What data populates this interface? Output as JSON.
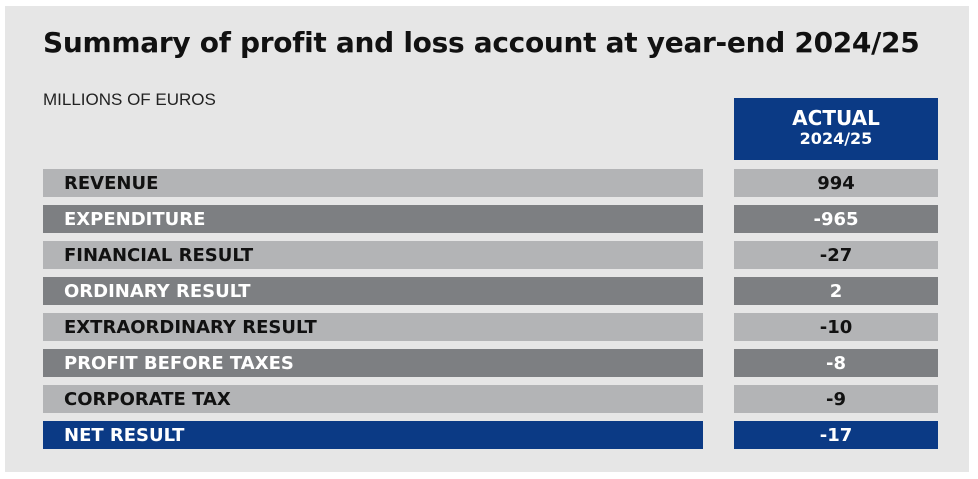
{
  "title": "Summary of profit and loss account at year-end 2024/25",
  "subtitle": "MILLIONS OF EUROS",
  "column_header": {
    "line1": "ACTUAL",
    "line2": "2024/25"
  },
  "chart_data": {
    "type": "table",
    "title": "Summary of profit and loss account at year-end 2024/25",
    "subtitle": "MILLIONS OF EUROS",
    "columns": [
      "ACTUAL 2024/25"
    ],
    "rows": [
      {
        "label": "REVENUE",
        "value": "994",
        "style": "light"
      },
      {
        "label": "EXPENDITURE",
        "value": "-965",
        "style": "dark"
      },
      {
        "label": "FINANCIAL RESULT",
        "value": "-27",
        "style": "light"
      },
      {
        "label": "ORDINARY RESULT",
        "value": "2",
        "style": "dark"
      },
      {
        "label": "EXTRAORDINARY RESULT",
        "value": "-10",
        "style": "light"
      },
      {
        "label": "PROFIT BEFORE TAXES",
        "value": "-8",
        "style": "dark"
      },
      {
        "label": "CORPORATE TAX",
        "value": "-9",
        "style": "light"
      },
      {
        "label": "NET RESULT",
        "value": "-17",
        "style": "blue"
      }
    ]
  },
  "colors": {
    "navy": "#0b3a85",
    "light_row": "#b3b4b6",
    "dark_row": "#7d7f82",
    "panel": "#e6e6e6"
  }
}
